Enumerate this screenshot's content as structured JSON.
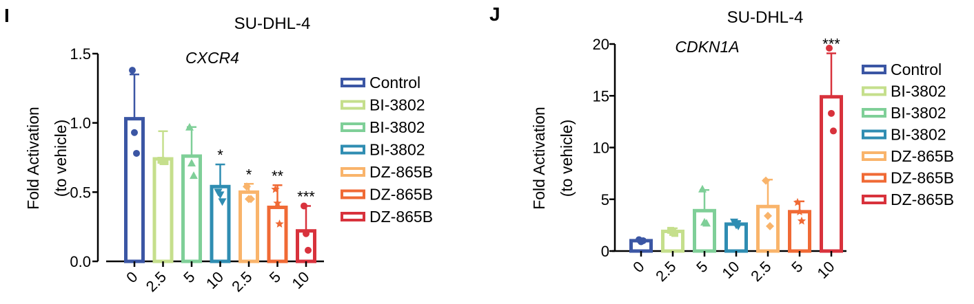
{
  "chart_data": [
    {
      "type": "bar",
      "panel_label": "I",
      "title": "SU-DHL-4",
      "subtitle": "CXCR4",
      "ylabel_line1": "Fold Activation",
      "ylabel_line2": "(to vehicle)",
      "xlabel": "",
      "ylim": [
        0,
        1.5
      ],
      "yticks": [
        "0.0",
        "0.5",
        "1.0",
        "1.5"
      ],
      "tick_values": [
        0,
        0.5,
        1.0,
        1.5
      ],
      "grid": false,
      "legend_position": "right",
      "categories": [
        "0",
        "2.5",
        "5",
        "10",
        "2.5",
        "5",
        "10"
      ],
      "groups": [
        "Control",
        "BI-3802",
        "BI-3802",
        "BI-3802",
        "DZ-865B",
        "DZ-865B",
        "DZ-865B"
      ],
      "values": [
        1.03,
        0.74,
        0.76,
        0.54,
        0.5,
        0.39,
        0.22
      ],
      "errors": [
        0.32,
        0.2,
        0.21,
        0.16,
        0.06,
        0.16,
        0.18
      ],
      "points": [
        [
          1.38,
          0.93,
          0.78
        ],
        [
          0.73,
          0.72,
          0.72
        ],
        [
          0.97,
          0.71,
          0.62
        ],
        [
          0.5,
          0.48,
          0.43
        ],
        [
          0.54,
          0.45,
          0.45
        ],
        [
          0.52,
          0.42,
          0.27
        ],
        [
          0.4,
          0.2,
          0.08
        ]
      ],
      "markers": [
        "circle",
        "square",
        "triangle",
        "triangle-down",
        "diamond",
        "star",
        "circle"
      ],
      "significance": [
        "",
        "",
        "",
        "*",
        "*",
        "**",
        "***"
      ],
      "colors": [
        "#3b56a4",
        "#c5df8c",
        "#7fcf98",
        "#2f8db2",
        "#f9b46b",
        "#f06a35",
        "#d8323c"
      ]
    },
    {
      "type": "bar",
      "panel_label": "J",
      "title": "SU-DHL-4",
      "subtitle": "CDKN1A",
      "ylabel_line1": "Fold Activation",
      "ylabel_line2": "(to vehicle)",
      "xlabel": "",
      "ylim": [
        0,
        20
      ],
      "yticks": [
        "0",
        "5",
        "10",
        "15",
        "20"
      ],
      "tick_values": [
        0,
        5,
        10,
        15,
        20
      ],
      "grid": false,
      "legend_position": "right",
      "categories": [
        "0",
        "2.5",
        "5",
        "10",
        "2.5",
        "5",
        "10"
      ],
      "groups": [
        "Control",
        "BI-3802",
        "BI-3802",
        "BI-3802",
        "DZ-865B",
        "DZ-865B",
        "DZ-865B"
      ],
      "values": [
        1.0,
        1.9,
        3.9,
        2.6,
        4.3,
        3.8,
        14.9
      ],
      "errors": [
        0.15,
        0.3,
        2.0,
        0.3,
        2.6,
        1.0,
        4.2
      ],
      "points": [
        [
          1.1,
          0.9,
          1.0
        ],
        [
          2.0,
          1.8,
          1.7
        ],
        [
          6.0,
          2.8,
          2.7
        ],
        [
          2.8,
          2.5,
          2.4
        ],
        [
          6.8,
          3.4,
          2.4
        ],
        [
          4.7,
          3.8,
          2.9
        ],
        [
          19.6,
          13.3,
          11.6
        ]
      ],
      "markers": [
        "circle",
        "square",
        "triangle",
        "triangle-down",
        "diamond",
        "star",
        "circle"
      ],
      "significance": [
        "",
        "",
        "",
        "",
        "",
        "",
        "***"
      ],
      "colors": [
        "#3b56a4",
        "#c5df8c",
        "#7fcf98",
        "#2f8db2",
        "#f9b46b",
        "#f06a35",
        "#d8323c"
      ]
    }
  ]
}
